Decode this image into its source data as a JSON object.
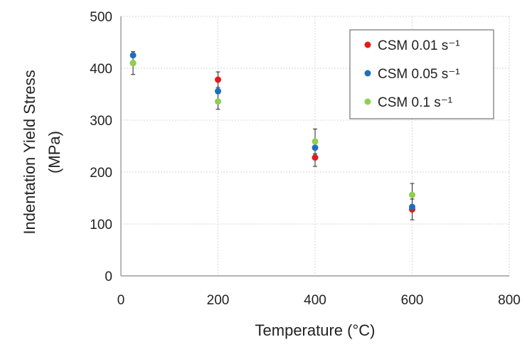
{
  "chart_data": {
    "type": "scatter",
    "title": "",
    "xlabel": "Temperature (°C)",
    "ylabel_lines": [
      "Indentation Yield Stress",
      "(MPa)"
    ],
    "xlim": [
      0,
      800
    ],
    "ylim": [
      0,
      500
    ],
    "xticks": [
      0,
      200,
      400,
      600,
      800
    ],
    "yticks": [
      0,
      100,
      200,
      300,
      400,
      500
    ],
    "grid": true,
    "legend_position": "top-right",
    "series": [
      {
        "name": "CSM 0.01 s⁻¹",
        "color": "#e31a1c",
        "points": [
          {
            "x": 25,
            "y": 410,
            "err": 0
          },
          {
            "x": 200,
            "y": 378,
            "err": 15
          },
          {
            "x": 400,
            "y": 228,
            "err": 17
          },
          {
            "x": 600,
            "y": 128,
            "err": 20
          }
        ]
      },
      {
        "name": "CSM 0.05 s⁻¹",
        "color": "#1f6fbf",
        "points": [
          {
            "x": 25,
            "y": 425,
            "err": 0
          },
          {
            "x": 200,
            "y": 356,
            "err": 0
          },
          {
            "x": 400,
            "y": 247,
            "err": 0
          },
          {
            "x": 600,
            "y": 133,
            "err": 0
          }
        ]
      },
      {
        "name": "CSM 0.1 s⁻¹",
        "color": "#8dcf50",
        "points": [
          {
            "x": 25,
            "y": 410,
            "err": 22
          },
          {
            "x": 200,
            "y": 336,
            "err": 15
          },
          {
            "x": 400,
            "y": 259,
            "err": 24
          },
          {
            "x": 600,
            "y": 156,
            "err": 22
          }
        ]
      }
    ]
  }
}
